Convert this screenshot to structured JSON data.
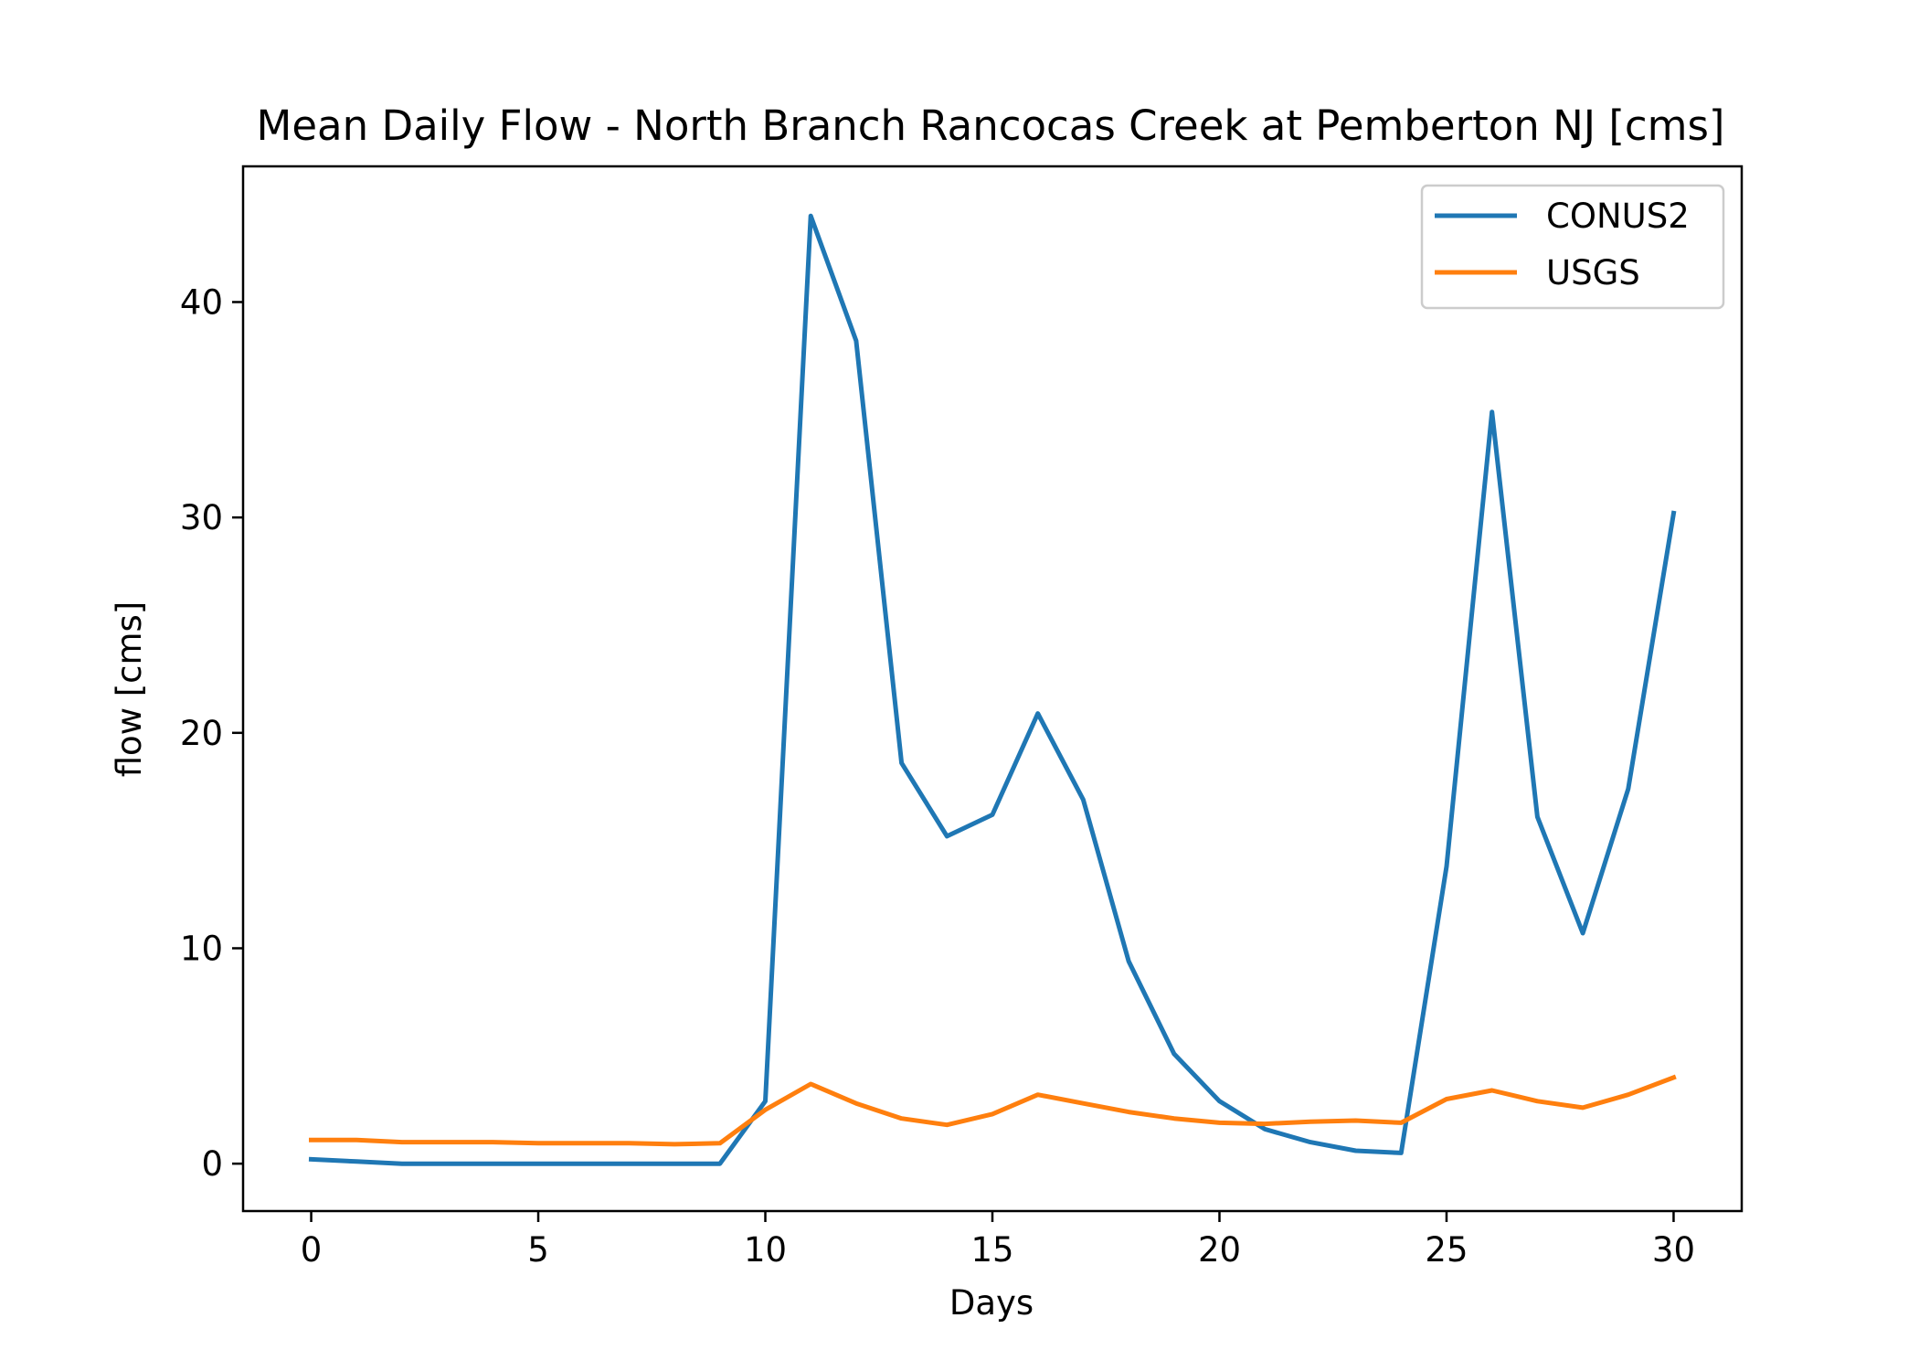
{
  "chart_data": {
    "type": "line",
    "title": "Mean Daily Flow - North Branch Rancocas Creek at Pemberton NJ [cms]",
    "xlabel": "Days",
    "ylabel": "flow [cms]",
    "xlim": [
      -1.5,
      31.5
    ],
    "ylim": [
      -2.2,
      46.3
    ],
    "xticks": [
      0,
      5,
      10,
      15,
      20,
      25,
      30
    ],
    "yticks": [
      0,
      10,
      20,
      30,
      40
    ],
    "grid": false,
    "legend_position": "top-right",
    "x": [
      0,
      1,
      2,
      3,
      4,
      5,
      6,
      7,
      8,
      9,
      10,
      11,
      12,
      13,
      14,
      15,
      16,
      17,
      18,
      19,
      20,
      21,
      22,
      23,
      24,
      25,
      26,
      27,
      28,
      29,
      30
    ],
    "series": [
      {
        "name": "CONUS2",
        "color": "#1f77b4",
        "values": [
          0.2,
          0.1,
          0.0,
          0.0,
          0.0,
          0.0,
          0.0,
          0.0,
          0.0,
          0.0,
          2.9,
          44.0,
          38.2,
          18.6,
          15.2,
          16.2,
          20.9,
          16.9,
          9.4,
          5.1,
          2.9,
          1.6,
          1.0,
          0.6,
          0.5,
          13.8,
          34.9,
          16.1,
          10.7,
          17.4,
          30.2
        ]
      },
      {
        "name": "USGS",
        "color": "#ff7f0e",
        "values": [
          1.1,
          1.1,
          1.0,
          1.0,
          1.0,
          0.95,
          0.95,
          0.95,
          0.9,
          0.95,
          2.5,
          3.7,
          2.8,
          2.1,
          1.8,
          2.3,
          3.2,
          2.8,
          2.4,
          2.1,
          1.9,
          1.85,
          1.95,
          2.0,
          1.9,
          3.0,
          3.4,
          2.9,
          2.6,
          3.2,
          4.0
        ]
      }
    ]
  }
}
